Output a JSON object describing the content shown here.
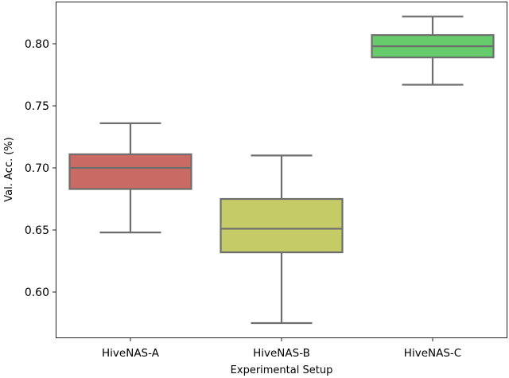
{
  "chart_data": {
    "type": "box",
    "title": "",
    "xlabel": "Experimental Setup",
    "ylabel": "Val. Acc. (%)",
    "ylim": [
      0.563,
      0.834
    ],
    "yticks": [
      "0.60",
      "0.65",
      "0.70",
      "0.75",
      "0.80"
    ],
    "categories": [
      "HiveNAS-A",
      "HiveNAS-B",
      "HiveNAS-C"
    ],
    "grid": false,
    "series": [
      {
        "name": "HiveNAS-A",
        "color": "#c96b64",
        "whisker_low": 0.648,
        "q1": 0.683,
        "median": 0.7,
        "q3": 0.711,
        "whisker_high": 0.736
      },
      {
        "name": "HiveNAS-B",
        "color": "#c5cb67",
        "whisker_low": 0.575,
        "q1": 0.632,
        "median": 0.651,
        "q3": 0.675,
        "whisker_high": 0.71
      },
      {
        "name": "HiveNAS-C",
        "color": "#66cb6a",
        "whisker_low": 0.767,
        "q1": 0.789,
        "median": 0.798,
        "q3": 0.807,
        "whisker_high": 0.822
      }
    ]
  }
}
